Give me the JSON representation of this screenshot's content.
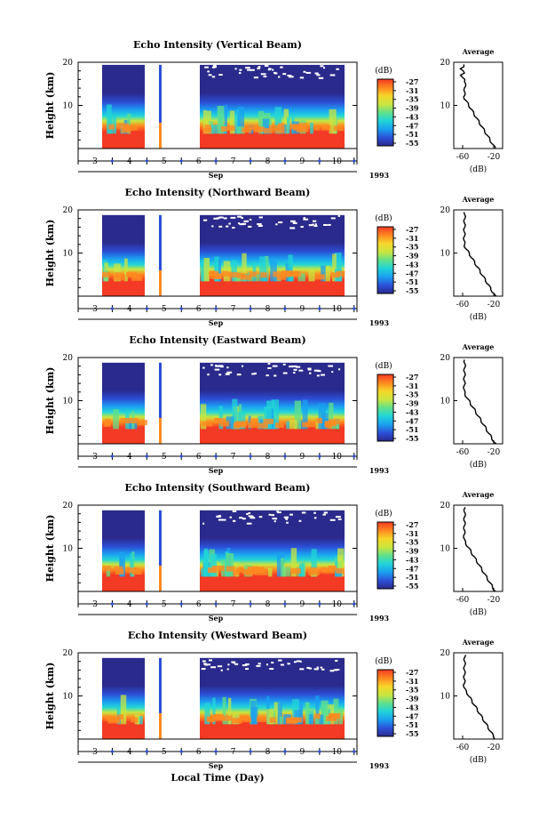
{
  "chart_data": [
    {
      "type": "heatmap",
      "title": "Echo Intensity (Vertical Beam)",
      "ylabel": "Height (km)",
      "yticks": [
        10,
        20
      ],
      "ylim": [
        0,
        20
      ],
      "xlabel": "Sep",
      "xticks": [
        "3",
        "4",
        "5",
        "6",
        "7",
        "8",
        "9",
        "10"
      ],
      "year": "1993",
      "colorbar": {
        "unit": "(dB)",
        "ticks": [
          "-27",
          "-31",
          "-35",
          "-39",
          "-43",
          "-47",
          "-51",
          "-55"
        ]
      },
      "average": {
        "title": "Average",
        "xlabel": "(dB)",
        "xticks": [
          "-60",
          "-20"
        ],
        "yticks": [
          10,
          20
        ]
      }
    },
    {
      "type": "heatmap",
      "title": "Echo Intensity (Northward Beam)",
      "ylabel": "Height (km)",
      "yticks": [
        10,
        20
      ],
      "ylim": [
        0,
        20
      ],
      "xlabel": "Sep",
      "xticks": [
        "3",
        "4",
        "5",
        "6",
        "7",
        "8",
        "9",
        "10"
      ],
      "year": "1993",
      "colorbar": {
        "unit": "(dB)",
        "ticks": [
          "-27",
          "-31",
          "-35",
          "-39",
          "-43",
          "-47",
          "-51",
          "-55"
        ]
      },
      "average": {
        "title": "Average",
        "xlabel": "(dB)",
        "xticks": [
          "-60",
          "-20"
        ],
        "yticks": [
          10,
          20
        ]
      }
    },
    {
      "type": "heatmap",
      "title": "Echo Intensity (Eastward Beam)",
      "ylabel": "Height (km)",
      "yticks": [
        10,
        20
      ],
      "ylim": [
        0,
        20
      ],
      "xlabel": "Sep",
      "xticks": [
        "3",
        "4",
        "5",
        "6",
        "7",
        "8",
        "9",
        "10"
      ],
      "year": "1993",
      "colorbar": {
        "unit": "(dB)",
        "ticks": [
          "-27",
          "-31",
          "-35",
          "-39",
          "-43",
          "-47",
          "-51",
          "-55"
        ]
      },
      "average": {
        "title": "Average",
        "xlabel": "(dB)",
        "xticks": [
          "-60",
          "-20"
        ],
        "yticks": [
          10,
          20
        ]
      }
    },
    {
      "type": "heatmap",
      "title": "Echo Intensity (Southward Beam)",
      "ylabel": "Height (km)",
      "yticks": [
        10,
        20
      ],
      "ylim": [
        0,
        20
      ],
      "xlabel": "Sep",
      "xticks": [
        "3",
        "4",
        "5",
        "6",
        "7",
        "8",
        "9",
        "10"
      ],
      "year": "1993",
      "colorbar": {
        "unit": "(dB)",
        "ticks": [
          "-27",
          "-31",
          "-35",
          "-39",
          "-43",
          "-47",
          "-51",
          "-55"
        ]
      },
      "average": {
        "title": "Average",
        "xlabel": "(dB)",
        "xticks": [
          "-60",
          "-20"
        ],
        "yticks": [
          10,
          20
        ]
      }
    },
    {
      "type": "heatmap",
      "title": "Echo Intensity (Westward Beam)",
      "ylabel": "Height (km)",
      "yticks": [
        10,
        20
      ],
      "ylim": [
        0,
        20
      ],
      "xlabel": "Sep",
      "xticks": [
        "3",
        "4",
        "5",
        "6",
        "7",
        "8",
        "9",
        "10"
      ],
      "year": "1993",
      "colorbar": {
        "unit": "(dB)",
        "ticks": [
          "-27",
          "-31",
          "-35",
          "-39",
          "-43",
          "-47",
          "-51",
          "-55"
        ]
      },
      "average": {
        "title": "Average",
        "xlabel": "(dB)",
        "xticks": [
          "-60",
          "-20"
        ],
        "yticks": [
          10,
          20
        ]
      }
    }
  ],
  "footer": {
    "xlabel": "Local Time (Day)"
  },
  "colors": {
    "colormap": [
      "#2a2a8c",
      "#2c4fd6",
      "#1aa0f0",
      "#22d6d6",
      "#62e08a",
      "#c8e640",
      "#f6d62a",
      "#ff8a20",
      "#f23a24"
    ]
  }
}
